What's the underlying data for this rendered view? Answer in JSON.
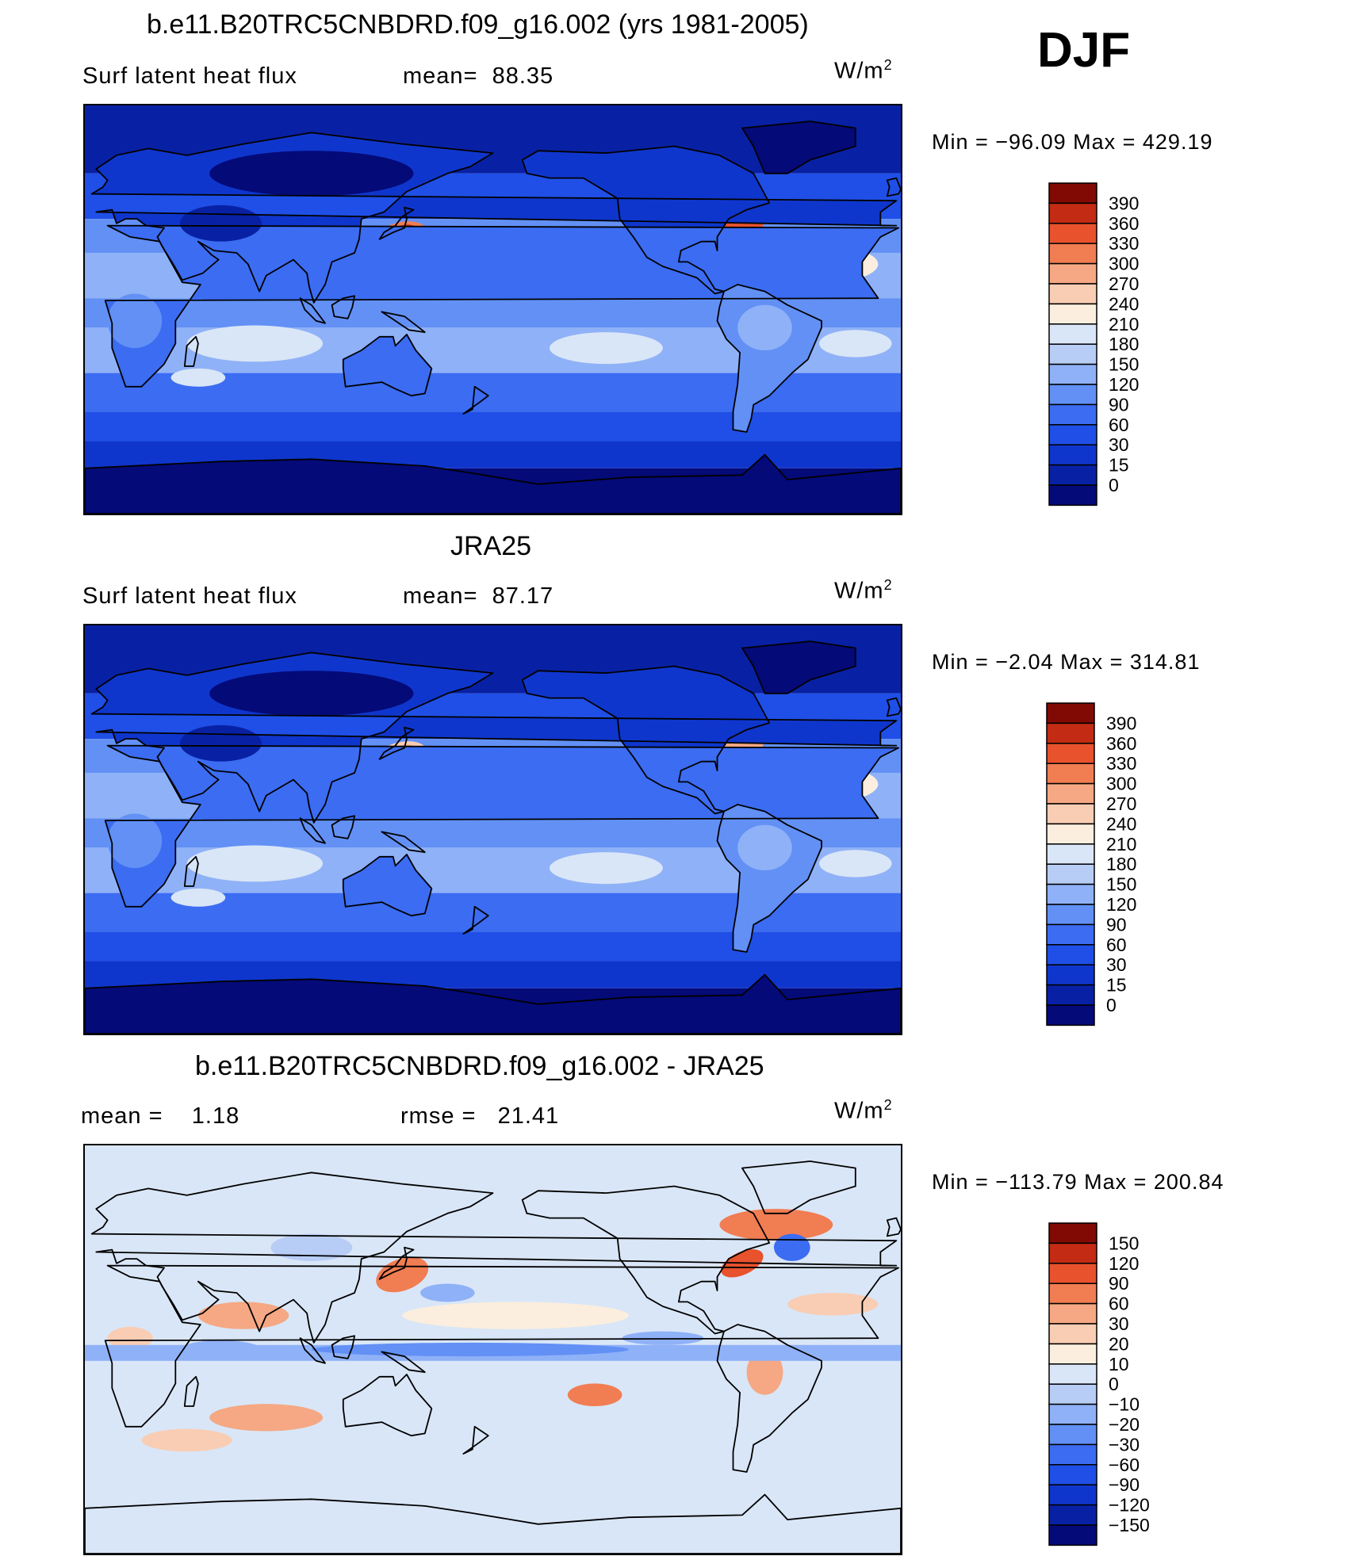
{
  "season": "DJF",
  "units": {
    "base": "W/m",
    "exp": "2"
  },
  "panels": [
    {
      "id": "model",
      "title": "b.e11.B20TRC5CNBDRD.f09_g16.002 (yrs 1981-2005)",
      "left_label": "Surf latent heat flux",
      "stat_label": "mean=",
      "stat_value": "88.35",
      "minmax": "Min = −96.09 Max = 429.19"
    },
    {
      "id": "obs",
      "title": "JRA25",
      "left_label": "Surf latent heat flux",
      "stat_label": "mean=",
      "stat_value": "87.17",
      "minmax": "Min = −2.04 Max = 314.81"
    },
    {
      "id": "diff",
      "title": "b.e11.B20TRC5CNBDRD.f09_g16.002 - JRA25",
      "left_label": "mean =",
      "left_value": "1.18",
      "stat_label": "rmse =",
      "stat_value": "21.41",
      "minmax": "Min = −113.79 Max = 200.84"
    }
  ],
  "chart_data": [
    {
      "type": "heatmap",
      "title": "b.e11.B20TRC5CNBDRD.f09_g16.002 (yrs 1981-2005)",
      "variable": "Surf latent heat flux",
      "units": "W/m2",
      "mean": 88.35,
      "min": -96.09,
      "max": 429.19,
      "colorbar_levels": [
        "0",
        "15",
        "30",
        "60",
        "90",
        "120",
        "150",
        "180",
        "210",
        "240",
        "270",
        "300",
        "330",
        "360",
        "390"
      ],
      "colorbar_colors": [
        "#040a78",
        "#0821a4",
        "#0f36cc",
        "#1f4fe6",
        "#3b6cf2",
        "#6290f5",
        "#8fb1f7",
        "#b8cdf5",
        "#d9e6f7",
        "#fbeede",
        "#f9cdb4",
        "#f5a883",
        "#f17d53",
        "#e8522d",
        "#c42b14",
        "#820a04"
      ]
    },
    {
      "type": "heatmap",
      "title": "JRA25",
      "variable": "Surf latent heat flux",
      "units": "W/m2",
      "mean": 87.17,
      "min": -2.04,
      "max": 314.81,
      "colorbar_levels": [
        "0",
        "15",
        "30",
        "60",
        "90",
        "120",
        "150",
        "180",
        "210",
        "240",
        "270",
        "300",
        "330",
        "360",
        "390"
      ],
      "colorbar_colors": [
        "#040a78",
        "#0821a4",
        "#0f36cc",
        "#1f4fe6",
        "#3b6cf2",
        "#6290f5",
        "#8fb1f7",
        "#b8cdf5",
        "#d9e6f7",
        "#fbeede",
        "#f9cdb4",
        "#f5a883",
        "#f17d53",
        "#e8522d",
        "#c42b14",
        "#820a04"
      ]
    },
    {
      "type": "heatmap",
      "title": "b.e11.B20TRC5CNBDRD.f09_g16.002 - JRA25",
      "units": "W/m2",
      "mean": 1.18,
      "rmse": 21.41,
      "min": -113.79,
      "max": 200.84,
      "colorbar_levels": [
        "−150",
        "−120",
        "−90",
        "−60",
        "−30",
        "−20",
        "−10",
        "0",
        "10",
        "20",
        "30",
        "60",
        "90",
        "120",
        "150"
      ],
      "colorbar_colors": [
        "#040a78",
        "#0821a4",
        "#0f36cc",
        "#1f4fe6",
        "#3b6cf2",
        "#6290f5",
        "#8fb1f7",
        "#b8cdf5",
        "#d9e6f7",
        "#fbeede",
        "#f9cdb4",
        "#f5a883",
        "#f17d53",
        "#e8522d",
        "#c42b14",
        "#820a04"
      ]
    }
  ]
}
